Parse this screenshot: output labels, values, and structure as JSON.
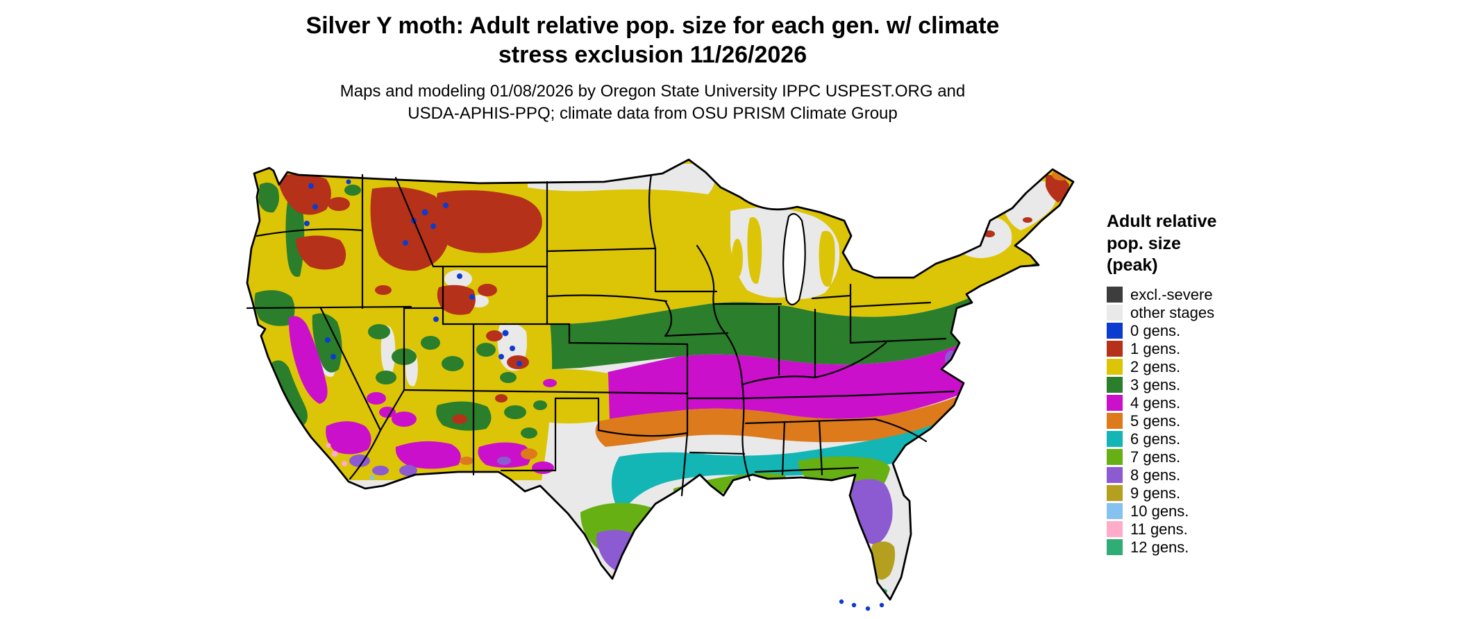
{
  "title": {
    "line1": "Silver Y moth: Adult relative pop. size for each gen. w/ climate",
    "line2": "stress exclusion 11/26/2026"
  },
  "subtitle": {
    "line1": "Maps and modeling 01/08/2026 by Oregon State University IPPC USPEST.ORG and",
    "line2": "USDA-APHIS-PPQ; climate data from OSU PRISM Climate Group"
  },
  "legend": {
    "title_lines": [
      "Adult relative",
      "pop. size",
      "(peak)"
    ],
    "items": [
      {
        "key": "excl",
        "label": "excl.-severe",
        "color": "#3d3d3d"
      },
      {
        "key": "other",
        "label": "other stages",
        "color": "#e9e9e9"
      },
      {
        "key": "g0",
        "label": "0 gens.",
        "color": "#0b3ccf"
      },
      {
        "key": "g1",
        "label": "1 gens.",
        "color": "#b5311a"
      },
      {
        "key": "g2",
        "label": "2 gens.",
        "color": "#dcc506"
      },
      {
        "key": "g3",
        "label": "3 gens.",
        "color": "#2b7e2b"
      },
      {
        "key": "g4",
        "label": "4 gens.",
        "color": "#ca10ca"
      },
      {
        "key": "g5",
        "label": "5 gens.",
        "color": "#dd7a1b"
      },
      {
        "key": "g6",
        "label": "6 gens.",
        "color": "#13b5b5"
      },
      {
        "key": "g7",
        "label": "7 gens.",
        "color": "#67b013"
      },
      {
        "key": "g8",
        "label": "8 gens.",
        "color": "#8d5bd1"
      },
      {
        "key": "g9",
        "label": "9 gens.",
        "color": "#b4a01e"
      },
      {
        "key": "g10",
        "label": "10 gens.",
        "color": "#86c2ef"
      },
      {
        "key": "g11",
        "label": "11 gens.",
        "color": "#ffabca"
      },
      {
        "key": "g12",
        "label": "12 gens.",
        "color": "#30ad75"
      }
    ]
  },
  "map": {
    "border_color": "#000000",
    "water_color": "#ffffff"
  }
}
